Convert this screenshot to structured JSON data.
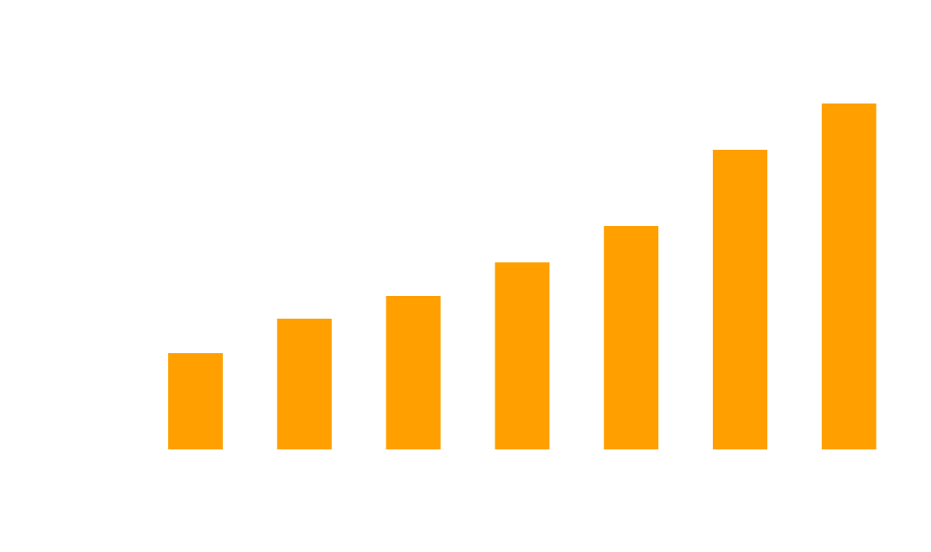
{
  "chart_data": {
    "type": "bar",
    "values": [
      106,
      144,
      169,
      206,
      246,
      330,
      381
    ],
    "color": "#ffa000"
  }
}
